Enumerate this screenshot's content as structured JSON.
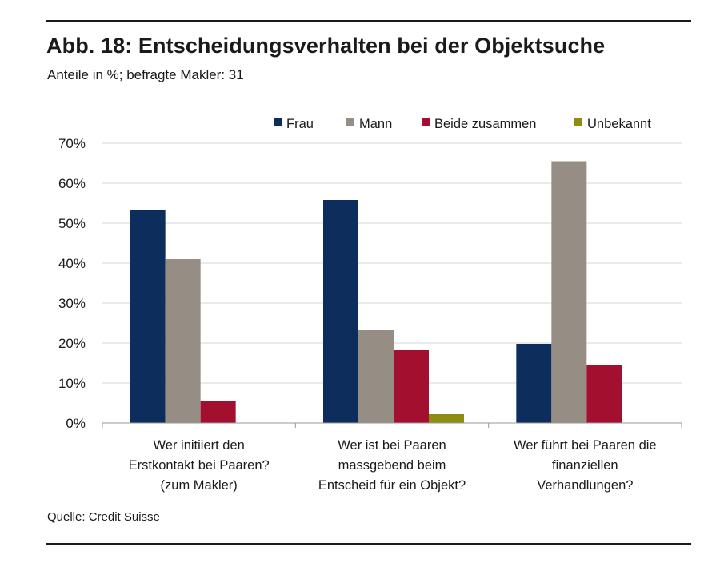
{
  "header": {
    "title": "Abb. 18: Entscheidungsverhalten bei der Objektsuche",
    "subtitle": "Anteile in %; befragte Makler: 31"
  },
  "footer": {
    "source": "Quelle: Credit Suisse"
  },
  "chart_data": {
    "type": "bar",
    "title": "Abb. 18: Entscheidungsverhalten bei der Objektsuche",
    "subtitle": "Anteile in %; befragte Makler: 31",
    "xlabel": "",
    "ylabel": "",
    "ylim": [
      0,
      70
    ],
    "yticks": [
      0,
      10,
      20,
      30,
      40,
      50,
      60,
      70
    ],
    "ytick_suffix": "%",
    "grid": true,
    "legend_position": "top-right",
    "categories": [
      [
        "Wer initiiert den",
        "Erstkontakt bei Paaren?",
        "(zum Makler)"
      ],
      [
        "Wer ist bei Paaren",
        "massgebend beim",
        "Entscheid für ein Objekt?"
      ],
      [
        "Wer führt bei Paaren die",
        "finanziellen",
        "Verhandlungen?"
      ]
    ],
    "series": [
      {
        "name": "Frau",
        "color": "#0d2e5c",
        "values": [
          53.2,
          55.8,
          19.8
        ]
      },
      {
        "name": "Mann",
        "color": "#968e85",
        "values": [
          41.0,
          23.2,
          65.5
        ]
      },
      {
        "name": "Beide zusammen",
        "color": "#a3102f",
        "values": [
          5.5,
          18.2,
          14.5
        ]
      },
      {
        "name": "Unbekannt",
        "color": "#8f8c12",
        "values": [
          0,
          2.2,
          0
        ]
      }
    ]
  }
}
